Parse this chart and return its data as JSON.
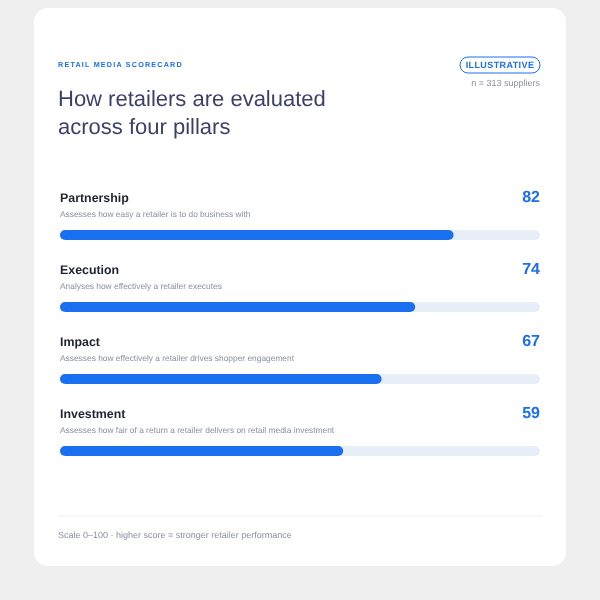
{
  "chart_data": {
    "type": "bar",
    "orientation": "horizontal",
    "subtitle": "RETAIL MEDIA SCORECARD",
    "title": "How retailers are evaluated across four pillars",
    "categories": [
      "Partnership",
      "Execution",
      "Impact",
      "Investment"
    ],
    "values": [
      82,
      74,
      67,
      59
    ],
    "color": "#1a6ff0",
    "xlim": [
      0,
      100
    ],
    "data_labels": true,
    "grid": false,
    "annotations": [
      "ILLUSTRATIVE",
      "n = 313 suppliers",
      "Scale 0–100 · higher score = stronger retailer performance",
      {
        "text": "Assesses how easy a retailer is to do business with",
        "y": "Partnership"
      },
      {
        "text": "Analyses how effectively a retailer executes",
        "y": "Execution"
      },
      {
        "text": "Assesses how effectively a retailer drives shopper engagement",
        "y": "Impact"
      },
      {
        "text": "Assesses how fair of a return a retailer delivers on retail media investment",
        "y": "Investment"
      }
    ]
  }
}
